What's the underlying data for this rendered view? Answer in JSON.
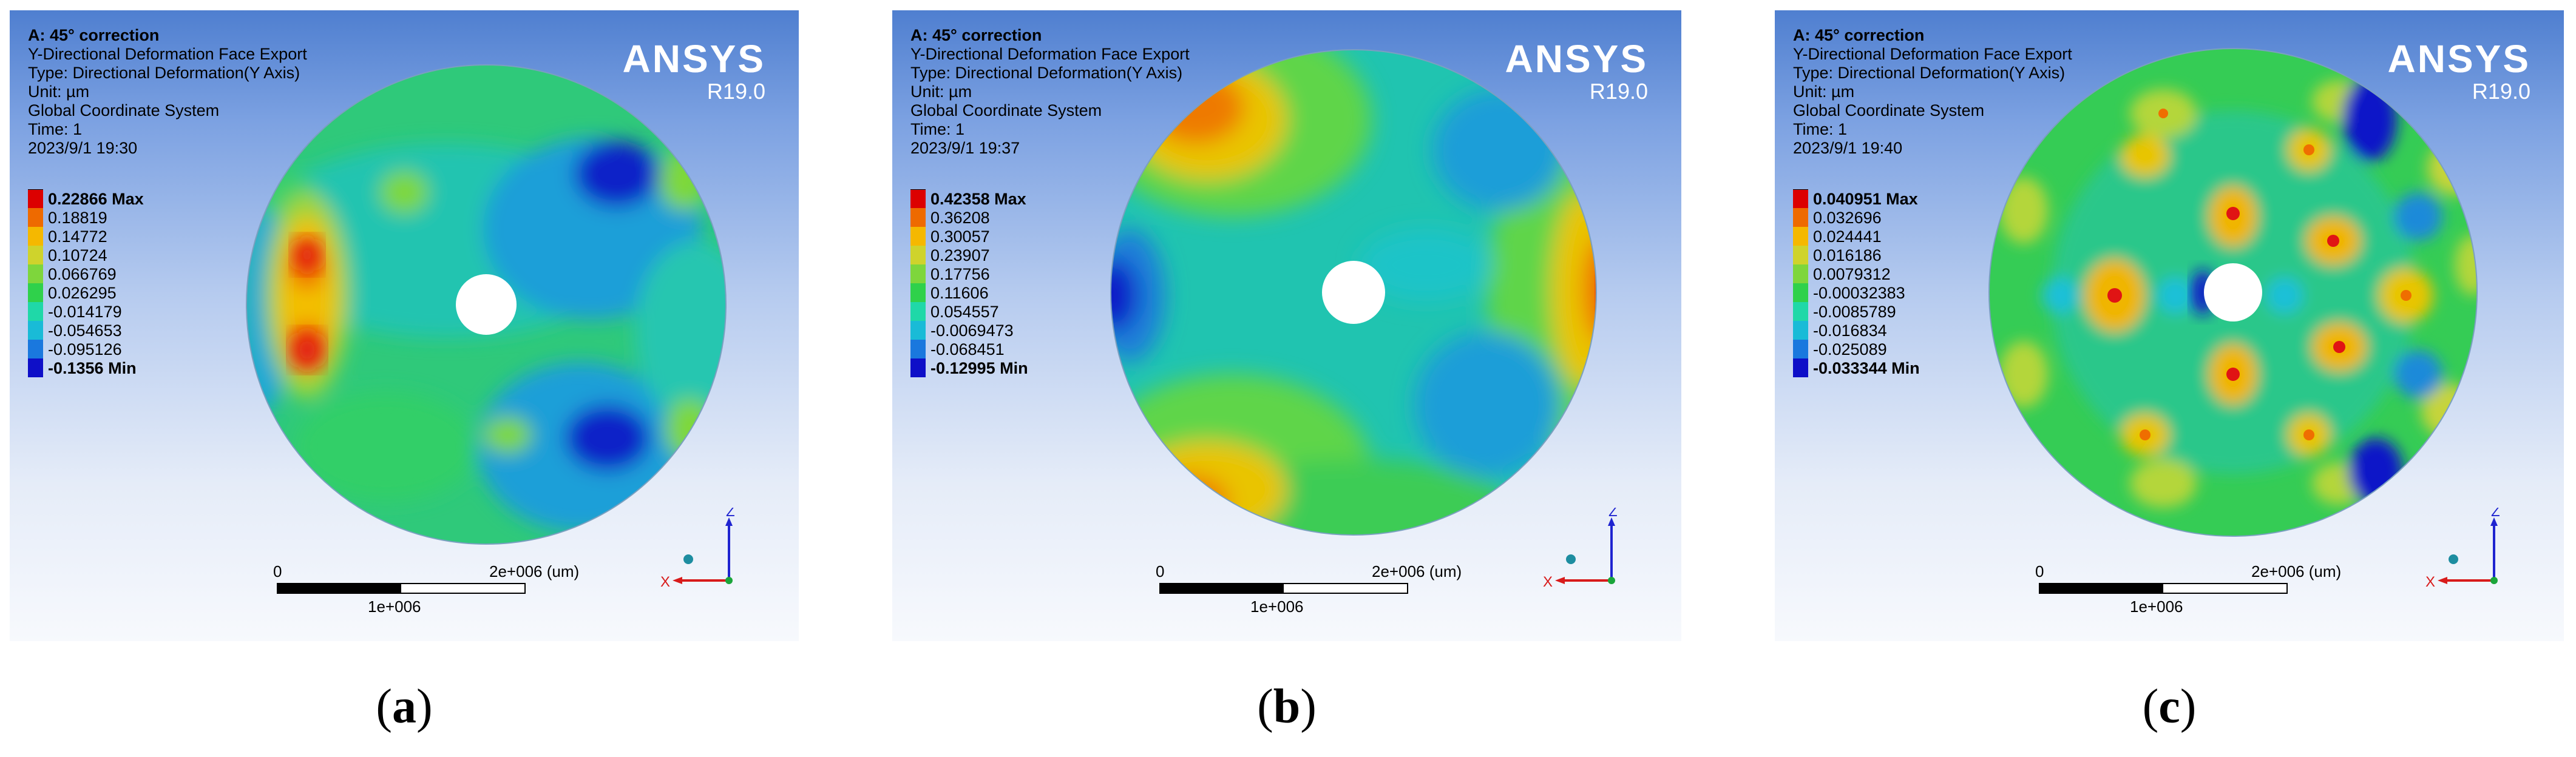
{
  "common": {
    "line1": "A: 45° correction",
    "line2": "Y-Directional Deformation Face Export",
    "line3": "Type: Directional Deformation(Y Axis)",
    "line4": "Unit: µm",
    "line5": "Global Coordinate System",
    "line6": "Time: 1",
    "brand": "ANSYS",
    "version": "R19.0",
    "scale_zero": "0",
    "scale_max": "2e+006 (um)",
    "scale_mid": "1e+006",
    "axis_z": "Z",
    "axis_x": "X"
  },
  "legend_colors": [
    "#dc0000",
    "#ee6a00",
    "#f5b800",
    "#cfd32c",
    "#7ed63c",
    "#2fd14b",
    "#1fd8a8",
    "#19bbd7",
    "#1a78de",
    "#0e0fc8"
  ],
  "panels": [
    {
      "date": "2023/9/1 19:30",
      "caption_open": "(",
      "caption_letter": "a",
      "caption_close": ")",
      "legend": [
        "0.22866 Max",
        "0.18819",
        "0.14772",
        "0.10724",
        "0.066769",
        "0.026295",
        "-0.014179",
        "-0.054653",
        "-0.095126",
        "-0.1356 Min"
      ]
    },
    {
      "date": "2023/9/1 19:37",
      "caption_open": "(",
      "caption_letter": "b",
      "caption_close": ")",
      "legend": [
        "0.42358 Max",
        "0.36208",
        "0.30057",
        "0.23907",
        "0.17756",
        "0.11606",
        "0.054557",
        "-0.0069473",
        "-0.068451",
        "-0.12995 Min"
      ]
    },
    {
      "date": "2023/9/1 19:40",
      "caption_open": "(",
      "caption_letter": "c",
      "caption_close": ")",
      "legend": [
        "0.040951 Max",
        "0.032696",
        "0.024441",
        "0.016186",
        "0.0079312",
        "-0.00032383",
        "-0.0085789",
        "-0.016834",
        "-0.025089",
        "-0.033344 Min"
      ]
    }
  ]
}
